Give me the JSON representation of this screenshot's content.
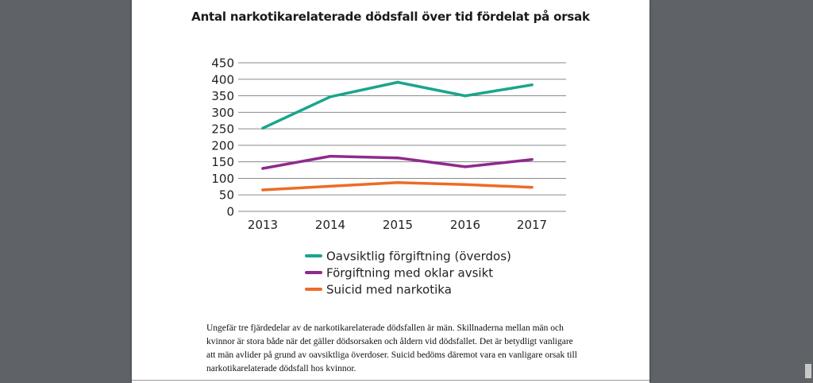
{
  "chart_data": {
    "type": "line",
    "title": "Antal narkotikarelaterade dödsfall över tid fördelat på orsak",
    "categories": [
      "2013",
      "2014",
      "2015",
      "2016",
      "2017"
    ],
    "yticks": [
      "450",
      "400",
      "350",
      "300",
      "250",
      "200",
      "150",
      "100",
      "50",
      "0"
    ],
    "ylim": [
      0,
      450
    ],
    "grid": "horizontal",
    "legend_position": "bottom",
    "series": [
      {
        "name": "Oavsiktlig förgiftning (överdos)",
        "color": "#1aa58c",
        "values": [
          252,
          347,
          391,
          350,
          383
        ]
      },
      {
        "name": "Förgiftning med oklar avsikt",
        "color": "#8e2a8e",
        "values": [
          130,
          167,
          162,
          135,
          157
        ]
      },
      {
        "name": "Suicid med narkotika",
        "color": "#ec6c27",
        "values": [
          65,
          76,
          87,
          81,
          73
        ]
      }
    ]
  },
  "body_text": "Ungefär tre fjärdedelar av de narkotikarelaterade dödsfallen är män. Skillnaderna mellan män och kvinnor är stora både när det gäller dödsorsaken och åldern vid dödsfallet. Det är betydligt vanligare att män avlider på grund av oavsiktliga överdoser. Suicid bedöms däremot vara en vanligare orsak till narkotikarelaterade dödsfall hos kvinnor."
}
